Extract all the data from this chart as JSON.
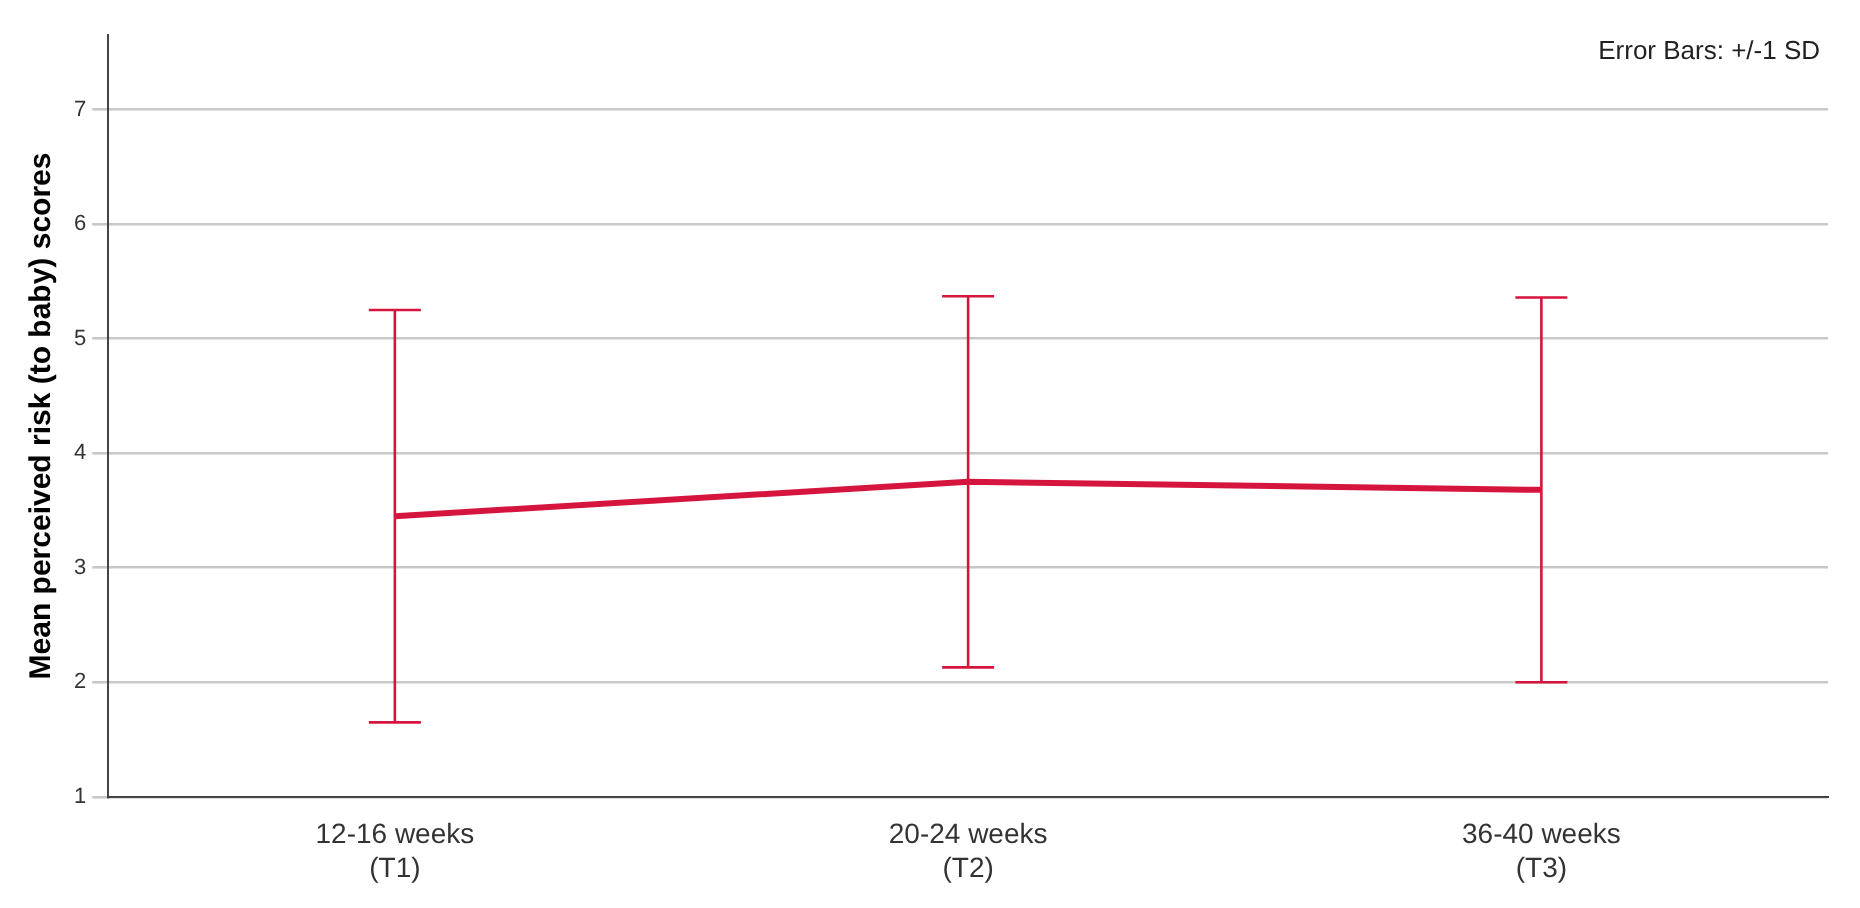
{
  "chart_data": {
    "type": "line",
    "ylabel": "Mean perceived risk (to baby) scores",
    "categories": [
      "12-16 weeks\n(T1)",
      "20-24 weeks\n(T2)",
      "36-40 weeks\n(T3)"
    ],
    "series": [
      {
        "color": "#d6153f",
        "values": [
          3.45,
          3.75,
          3.68
        ],
        "errors": [
          1.8,
          1.62,
          1.68
        ]
      }
    ],
    "ylim": [
      1,
      7.65
    ],
    "yticks": [
      1,
      2,
      3,
      4,
      5,
      6,
      7
    ],
    "grid": "y",
    "legend": false,
    "marker": "none",
    "line_style": "solid",
    "annotations": [
      "Error Bars: +/-1 SD"
    ]
  }
}
